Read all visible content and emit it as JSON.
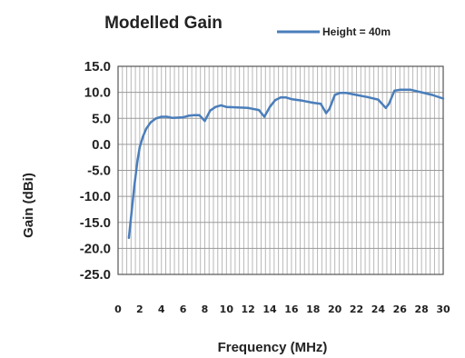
{
  "chart_data": {
    "type": "line",
    "title": "Modelled Gain",
    "xlabel": "Frequency (MHz)",
    "ylabel": "Gain (dBi)",
    "xlim": [
      0,
      30
    ],
    "ylim": [
      -25,
      15
    ],
    "x_ticks": [
      "0",
      "2",
      "4",
      "6",
      "8",
      "10",
      "12",
      "14",
      "16",
      "18",
      "20",
      "22",
      "24",
      "26",
      "28",
      "30"
    ],
    "y_ticks": [
      "15.0",
      "10.0",
      "5.0",
      "0.0",
      "-5.0",
      "-10.0",
      "-15.0",
      "-20.0",
      "-25.0"
    ],
    "grid": true,
    "legend_position": "top-right",
    "series": [
      {
        "name": "Height = 40m",
        "color": "#4a7ebb",
        "x": [
          1.0,
          1.2,
          1.5,
          1.8,
          2.0,
          2.3,
          2.6,
          3.0,
          3.5,
          4.0,
          4.5,
          5.0,
          6.0,
          6.5,
          7.0,
          7.5,
          8.0,
          8.5,
          9.0,
          9.5,
          10.0,
          11.0,
          12.0,
          13.0,
          13.5,
          14.0,
          14.5,
          15.0,
          15.5,
          16.0,
          17.0,
          18.0,
          18.7,
          19.2,
          19.5,
          20.0,
          20.5,
          21.0,
          22.0,
          23.0,
          24.0,
          24.7,
          25.0,
          25.5,
          26.0,
          26.5,
          27.0,
          28.0,
          29.0,
          30.0
        ],
        "y": [
          -18,
          -14,
          -8,
          -3,
          -0.5,
          1.5,
          3,
          4.2,
          5,
          5.3,
          5.3,
          5.1,
          5.2,
          5.5,
          5.6,
          5.6,
          4.5,
          6.5,
          7.2,
          7.5,
          7.2,
          7.1,
          7.0,
          6.6,
          5.3,
          7.2,
          8.5,
          9,
          9,
          8.7,
          8.4,
          8.0,
          7.8,
          6.0,
          6.8,
          9.5,
          9.9,
          9.9,
          9.5,
          9.1,
          8.6,
          7.0,
          7.8,
          10.3,
          10.5,
          10.5,
          10.5,
          10.0,
          9.5,
          8.8
        ]
      }
    ]
  }
}
